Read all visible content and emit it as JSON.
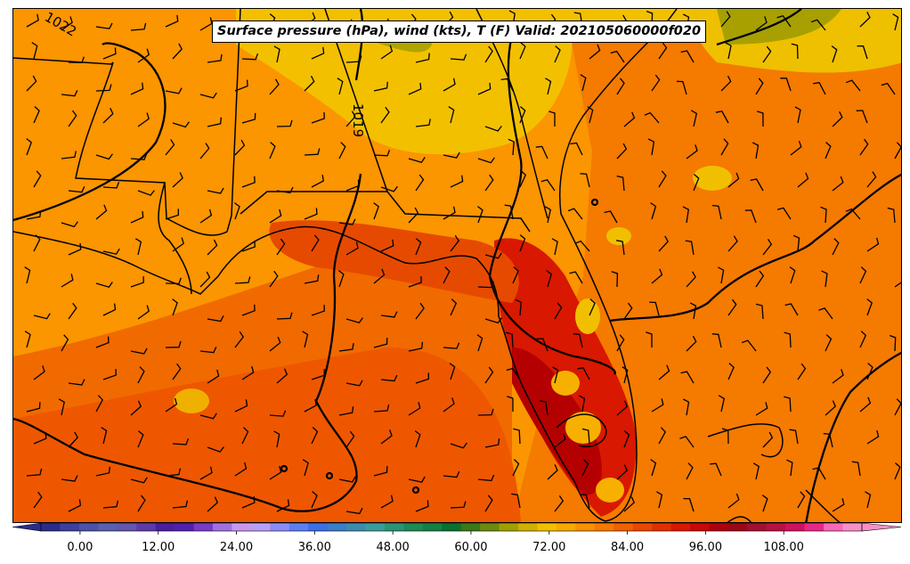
{
  "title": "Surface pressure (hPa), wind (kts), T (F) Valid: 202105060000f020",
  "colorbar": {
    "tick_labels": [
      "0.00",
      "12.00",
      "24.00",
      "36.00",
      "48.00",
      "60.00",
      "72.00",
      "84.00",
      "96.00",
      "108.00"
    ],
    "tick_values": [
      0,
      12,
      24,
      36,
      48,
      60,
      72,
      84,
      96,
      108
    ],
    "min": -6,
    "max": 120,
    "step": 3,
    "colors": [
      "#2b2c8a",
      "#3c3f9c",
      "#4c52a8",
      "#5a5faf",
      "#6455b0",
      "#5c3aa8",
      "#4b1ea0",
      "#5020b0",
      "#7a3ac8",
      "#a070e0",
      "#c898f0",
      "#b8a0f8",
      "#8c8cf8",
      "#5c7ef4",
      "#3c6ee8",
      "#3a7ec8",
      "#3c8cb0",
      "#3c9c9c",
      "#2a9474",
      "#1e8a54",
      "#148044",
      "#0a7030",
      "#3a7818",
      "#6c8a10",
      "#a0a000",
      "#d0b000",
      "#f0c000",
      "#f8a800",
      "#f89000",
      "#f87800",
      "#f06000",
      "#e84800",
      "#e03000",
      "#d81800",
      "#c80808",
      "#b00010",
      "#980818",
      "#a01030",
      "#b81040",
      "#d01060",
      "#e82888",
      "#f868b8",
      "#f890c8"
    ]
  },
  "contour_labels": [
    "1022",
    "1019"
  ],
  "region_colors": {
    "base": "#fb9500",
    "warm": "#f47300",
    "hot": "#e64a00",
    "very_hot": "#d11a00",
    "hottest": "#b40000",
    "cool": "#f0c000",
    "cooler": "#aaa200",
    "land_line": "#000000"
  }
}
